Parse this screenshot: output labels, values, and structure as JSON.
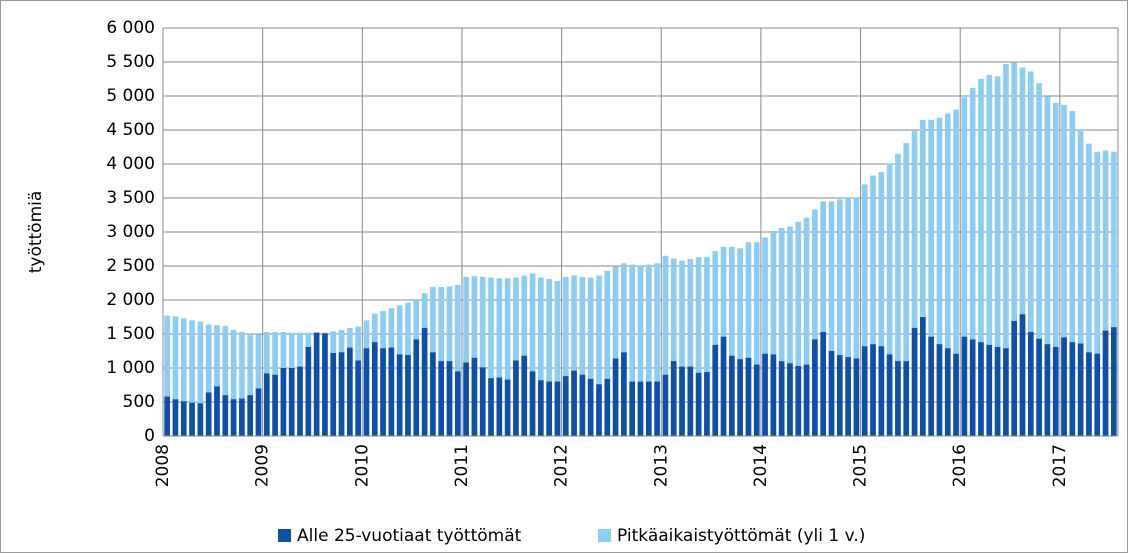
{
  "chart_data": {
    "type": "bar",
    "overlap": true,
    "y_label": "työttömiä",
    "categories": [
      "2008",
      null,
      null,
      null,
      null,
      null,
      null,
      null,
      null,
      null,
      null,
      null,
      "2009",
      null,
      null,
      null,
      null,
      null,
      null,
      null,
      null,
      null,
      null,
      null,
      "2010",
      null,
      null,
      null,
      null,
      null,
      null,
      null,
      null,
      null,
      null,
      null,
      "2011",
      null,
      null,
      null,
      null,
      null,
      null,
      null,
      null,
      null,
      null,
      null,
      "2012",
      null,
      null,
      null,
      null,
      null,
      null,
      null,
      null,
      null,
      null,
      null,
      "2013",
      null,
      null,
      null,
      null,
      null,
      null,
      null,
      null,
      null,
      null,
      null,
      "2014",
      null,
      null,
      null,
      null,
      null,
      null,
      null,
      null,
      null,
      null,
      null,
      "2015",
      null,
      null,
      null,
      null,
      null,
      null,
      null,
      null,
      null,
      null,
      null,
      "2016",
      null,
      null,
      null,
      null,
      null,
      null,
      null,
      null,
      null,
      null,
      null,
      "2017",
      null,
      null,
      null,
      null,
      null,
      null
    ],
    "series": [
      {
        "name": "Pitkäaikaistyöttömät (yli 1 v.)",
        "color": "#8ecdf3",
        "values": [
          1770,
          1760,
          1730,
          1700,
          1680,
          1640,
          1630,
          1620,
          1560,
          1530,
          1500,
          1490,
          1530,
          1530,
          1530,
          1520,
          1520,
          1520,
          1520,
          1520,
          1540,
          1560,
          1590,
          1610,
          1700,
          1800,
          1840,
          1880,
          1920,
          1960,
          2000,
          2100,
          2190,
          2190,
          2200,
          2220,
          2340,
          2350,
          2340,
          2330,
          2320,
          2320,
          2330,
          2360,
          2390,
          2330,
          2310,
          2280,
          2340,
          2360,
          2340,
          2330,
          2360,
          2430,
          2490,
          2540,
          2520,
          2510,
          2520,
          2540,
          2650,
          2610,
          2580,
          2600,
          2630,
          2630,
          2720,
          2780,
          2780,
          2760,
          2850,
          2850,
          2920,
          3000,
          3060,
          3080,
          3150,
          3210,
          3330,
          3450,
          3450,
          3480,
          3500,
          3510,
          3700,
          3830,
          3880,
          4010,
          4150,
          4310,
          4500,
          4650,
          4650,
          4680,
          4740,
          4800,
          4980,
          5120,
          5250,
          5310,
          5290,
          5470,
          5490,
          5420,
          5360,
          5190,
          4990,
          4900,
          4870,
          4780,
          4510,
          4300,
          4180,
          4200,
          4180
        ]
      },
      {
        "name": "Alle 25-vuotiaat työttömät",
        "color": "#0f4fa8",
        "values": [
          580,
          540,
          510,
          490,
          480,
          640,
          730,
          600,
          540,
          550,
          600,
          700,
          920,
          900,
          1000,
          1000,
          1020,
          1310,
          1520,
          1510,
          1220,
          1230,
          1300,
          1110,
          1290,
          1380,
          1290,
          1300,
          1200,
          1190,
          1420,
          1590,
          1230,
          1100,
          1100,
          950,
          1080,
          1150,
          1010,
          850,
          860,
          830,
          1110,
          1180,
          950,
          820,
          800,
          800,
          880,
          960,
          900,
          840,
          760,
          840,
          1140,
          1230,
          800,
          800,
          800,
          800,
          900,
          1100,
          1020,
          1020,
          930,
          940,
          1340,
          1460,
          1180,
          1130,
          1150,
          1050,
          1210,
          1200,
          1100,
          1070,
          1030,
          1050,
          1420,
          1530,
          1250,
          1190,
          1160,
          1140,
          1320,
          1350,
          1320,
          1200,
          1100,
          1100,
          1590,
          1750,
          1460,
          1350,
          1290,
          1210,
          1460,
          1420,
          1380,
          1340,
          1310,
          1290,
          1690,
          1790,
          1530,
          1430,
          1350,
          1310,
          1450,
          1380,
          1360,
          1230,
          1210,
          1550,
          1600
        ]
      }
    ],
    "legend_order": [
      1,
      0
    ],
    "ylim": [
      0,
      6000
    ],
    "yticks": [
      0,
      500,
      {
        "value": 1000,
        "label": "1 000"
      },
      {
        "value": 1500,
        "label": "1 500"
      },
      {
        "value": 2000,
        "label": "2 000"
      },
      {
        "value": 2500,
        "label": "2 500"
      },
      {
        "value": 3000,
        "label": "3 000"
      },
      {
        "value": 3500,
        "label": "3 500"
      },
      {
        "value": 4000,
        "label": "4 000"
      },
      {
        "value": 4500,
        "label": "4 500"
      },
      {
        "value": 5000,
        "label": "5 000"
      },
      {
        "value": 5500,
        "label": "5 500"
      },
      {
        "value": 6000,
        "label": "6 000"
      }
    ],
    "grid": true
  }
}
